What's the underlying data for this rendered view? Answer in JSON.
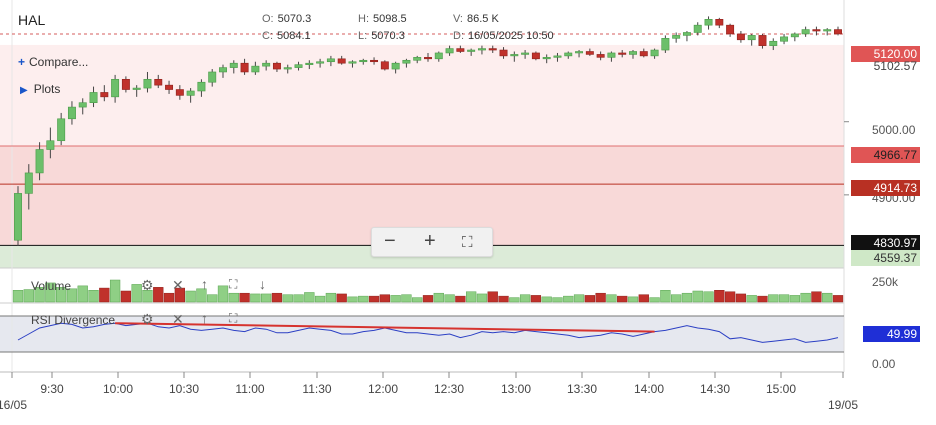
{
  "symbol": "HAL",
  "ohlc": {
    "o_label": "O:",
    "o": "5070.3",
    "h_label": "H:",
    "h": "5098.5",
    "v_label": "V:",
    "v": "86.5 K",
    "c_label": "C:",
    "c": "5084.1",
    "l_label": "L:",
    "l": "5070.3",
    "d_label": "D:",
    "d": "16/05/2025 10:50"
  },
  "compare_label": "Compare...",
  "plots_label": "Plots",
  "price_labels": {
    "p5120": "5120.00",
    "p5102": "5102.57",
    "p5000": "5000.00",
    "p4966": "4966.77",
    "p4914": "4914.73",
    "p4900": "4900.00",
    "p4830": "4830.97",
    "p4559": "4559.37"
  },
  "volume_study": {
    "label": "Volume",
    "scale": "250k"
  },
  "rsi_study": {
    "label": "RSI Divergence",
    "value": "49.99",
    "zero": "0.00"
  },
  "time_labels": [
    "16/05",
    "9:30",
    "10:00",
    "10:30",
    "11:00",
    "11:30",
    "12:00",
    "12:30",
    "13:00",
    "13:30",
    "14:00",
    "14:30",
    "15:00",
    "19/05"
  ],
  "colors": {
    "up": "#6cbf6a",
    "down": "#c0312b",
    "rsi": "#2b3fc4",
    "divergence": "#d6332f",
    "label_red": "#e05555",
    "label_dark": "#b83023",
    "label_black": "#111111",
    "label_green": "#cfe8c7",
    "label_blue": "#1f2fd6"
  },
  "chart_data": {
    "type": "candlestick",
    "title": "",
    "ylim": [
      4800,
      5150
    ],
    "x_interval_minutes": 5,
    "candles": [
      [
        4838,
        4912,
        4830,
        4902
      ],
      [
        4902,
        4942,
        4880,
        4930
      ],
      [
        4930,
        4972,
        4920,
        4962
      ],
      [
        4962,
        4992,
        4950,
        4974
      ],
      [
        4974,
        5012,
        4968,
        5004
      ],
      [
        5004,
        5028,
        4996,
        5020
      ],
      [
        5020,
        5032,
        5010,
        5026
      ],
      [
        5026,
        5048,
        5020,
        5040
      ],
      [
        5040,
        5050,
        5028,
        5034
      ],
      [
        5034,
        5064,
        5026,
        5058
      ],
      [
        5058,
        5062,
        5040,
        5044
      ],
      [
        5044,
        5050,
        5034,
        5046
      ],
      [
        5046,
        5068,
        5040,
        5058
      ],
      [
        5058,
        5064,
        5046,
        5050
      ],
      [
        5050,
        5056,
        5038,
        5044
      ],
      [
        5044,
        5050,
        5030,
        5036
      ],
      [
        5036,
        5046,
        5026,
        5042
      ],
      [
        5042,
        5058,
        5034,
        5054
      ],
      [
        5054,
        5072,
        5048,
        5068
      ],
      [
        5068,
        5078,
        5060,
        5074
      ],
      [
        5074,
        5084,
        5066,
        5080
      ],
      [
        5080,
        5086,
        5064,
        5068
      ],
      [
        5068,
        5082,
        5064,
        5076
      ],
      [
        5076,
        5084,
        5070,
        5080
      ],
      [
        5080,
        5082,
        5068,
        5072
      ],
      [
        5072,
        5078,
        5066,
        5074
      ],
      [
        5074,
        5082,
        5070,
        5078
      ],
      [
        5078,
        5084,
        5072,
        5080
      ],
      [
        5080,
        5086,
        5074,
        5082
      ],
      [
        5082,
        5090,
        5076,
        5086
      ],
      [
        5086,
        5090,
        5078,
        5080
      ],
      [
        5080,
        5084,
        5074,
        5082
      ],
      [
        5082,
        5086,
        5078,
        5084
      ],
      [
        5084,
        5088,
        5078,
        5082
      ],
      [
        5082,
        5084,
        5070,
        5072
      ],
      [
        5072,
        5082,
        5066,
        5080
      ],
      [
        5080,
        5086,
        5074,
        5084
      ],
      [
        5084,
        5090,
        5080,
        5088
      ],
      [
        5088,
        5094,
        5082,
        5086
      ],
      [
        5086,
        5096,
        5082,
        5094
      ],
      [
        5094,
        5104,
        5090,
        5100
      ],
      [
        5100,
        5104,
        5094,
        5096
      ],
      [
        5096,
        5100,
        5090,
        5098
      ],
      [
        5098,
        5104,
        5092,
        5100
      ],
      [
        5100,
        5104,
        5094,
        5098
      ],
      [
        5098,
        5102,
        5086,
        5090
      ],
      [
        5090,
        5096,
        5082,
        5092
      ],
      [
        5092,
        5098,
        5086,
        5094
      ],
      [
        5094,
        5096,
        5084,
        5086
      ],
      [
        5086,
        5092,
        5080,
        5088
      ],
      [
        5088,
        5094,
        5082,
        5090
      ],
      [
        5090,
        5096,
        5086,
        5094
      ],
      [
        5094,
        5098,
        5088,
        5096
      ],
      [
        5096,
        5100,
        5090,
        5092
      ],
      [
        5092,
        5096,
        5084,
        5088
      ],
      [
        5088,
        5096,
        5082,
        5094
      ],
      [
        5094,
        5098,
        5088,
        5092
      ],
      [
        5092,
        5098,
        5086,
        5096
      ],
      [
        5096,
        5100,
        5088,
        5090
      ],
      [
        5090,
        5100,
        5086,
        5098
      ],
      [
        5098,
        5118,
        5094,
        5114
      ],
      [
        5114,
        5122,
        5108,
        5118
      ],
      [
        5118,
        5124,
        5110,
        5122
      ],
      [
        5122,
        5136,
        5118,
        5132
      ],
      [
        5132,
        5144,
        5126,
        5140
      ],
      [
        5140,
        5142,
        5128,
        5132
      ],
      [
        5132,
        5134,
        5116,
        5120
      ],
      [
        5120,
        5124,
        5108,
        5112
      ],
      [
        5112,
        5120,
        5104,
        5118
      ],
      [
        5118,
        5120,
        5100,
        5104
      ],
      [
        5104,
        5114,
        5098,
        5110
      ],
      [
        5110,
        5120,
        5106,
        5116
      ],
      [
        5116,
        5122,
        5110,
        5120
      ],
      [
        5120,
        5130,
        5116,
        5126
      ],
      [
        5126,
        5130,
        5118,
        5124
      ],
      [
        5124,
        5128,
        5118,
        5126
      ],
      [
        5126,
        5130,
        5118,
        5120
      ]
    ],
    "volume": [
      80,
      85,
      100,
      130,
      100,
      90,
      110,
      80,
      95,
      150,
      75,
      120,
      80,
      100,
      60,
      95,
      75,
      90,
      50,
      110,
      60,
      60,
      55,
      55,
      60,
      50,
      50,
      65,
      40,
      60,
      55,
      35,
      40,
      40,
      50,
      45,
      50,
      30,
      45,
      60,
      50,
      40,
      70,
      55,
      70,
      40,
      30,
      50,
      45,
      35,
      30,
      40,
      50,
      45,
      60,
      50,
      40,
      35,
      50,
      30,
      80,
      50,
      60,
      75,
      70,
      80,
      70,
      55,
      45,
      40,
      50,
      50,
      45,
      60,
      70,
      60,
      45
    ],
    "rsi": [
      50,
      55,
      60,
      62,
      64,
      63,
      60,
      61,
      63,
      64,
      62,
      63,
      64,
      61,
      60,
      62,
      59,
      58,
      59,
      60,
      58,
      57,
      60,
      59,
      56,
      56,
      58,
      60,
      59,
      58,
      55,
      55,
      57,
      58,
      60,
      58,
      56,
      56,
      55,
      54,
      55,
      52,
      54,
      57,
      56,
      57,
      56,
      58,
      57,
      56,
      55,
      54,
      52,
      53,
      54,
      56,
      55,
      53,
      55,
      57,
      58,
      60,
      62,
      60,
      59,
      57,
      51,
      52,
      50,
      48,
      49,
      50,
      51,
      48,
      49,
      50,
      52
    ]
  }
}
